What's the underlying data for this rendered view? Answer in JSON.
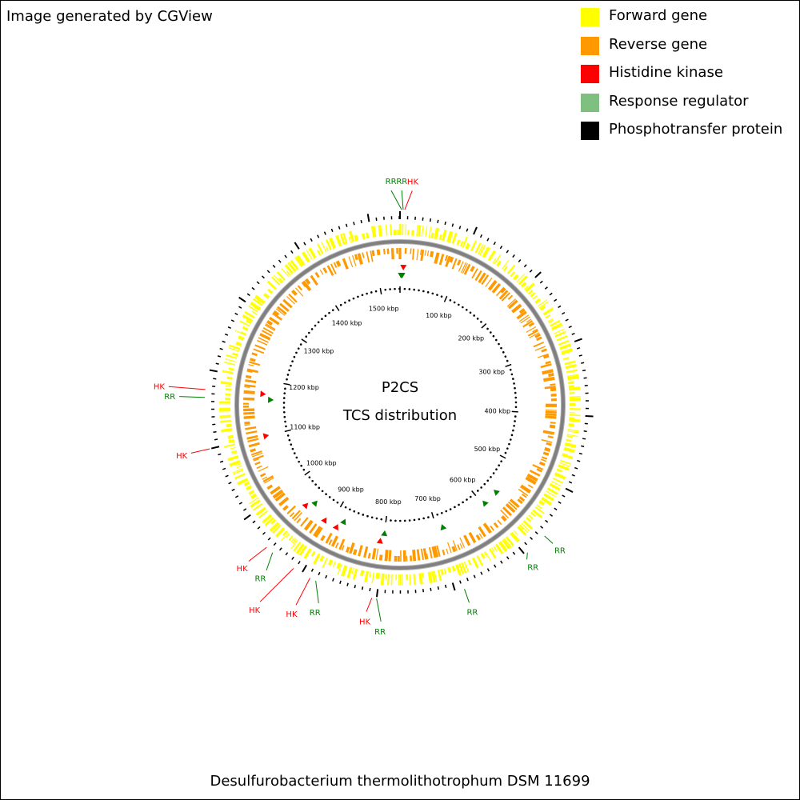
{
  "credit": "Image generated by CGView",
  "organism": "Desulfurobacterium thermolithotrophum DSM 11699",
  "center": {
    "line1": "P2CS",
    "line2": "TCS distribution"
  },
  "legend": [
    {
      "label": "Forward gene",
      "color": "#ffff00"
    },
    {
      "label": "Reverse gene",
      "color": "#ff9900"
    },
    {
      "label": "Histidine kinase",
      "color": "#ff0000"
    },
    {
      "label": "Response regulator",
      "color": "#7fbf7f"
    },
    {
      "label": "Phosphotransfer protein",
      "color": "#000000"
    }
  ],
  "map": {
    "genome_length_kbp": 1541,
    "ruler_labels": [
      "100 kbp",
      "200 kbp",
      "300 kbp",
      "400 kbp",
      "500 kbp",
      "600 kbp",
      "700 kbp",
      "800 kbp",
      "900 kbp",
      "1000 kbp",
      "1100 kbp",
      "1200 kbp",
      "1300 kbp",
      "1400 kbp",
      "1500 kbp"
    ],
    "ruler_positions_kbp": [
      100,
      200,
      300,
      400,
      500,
      600,
      700,
      800,
      900,
      1000,
      1100,
      1200,
      1300,
      1400,
      1500
    ],
    "features": [
      {
        "type": "RR",
        "strand": "reverse",
        "position_kbp": 2
      },
      {
        "type": "RR",
        "strand": "reverse",
        "position_kbp": 4
      },
      {
        "type": "HK",
        "strand": "reverse",
        "position_kbp": 6
      },
      {
        "type": "RR",
        "strand": "reverse",
        "position_kbp": 566
      },
      {
        "type": "RR",
        "strand": "reverse",
        "position_kbp": 596
      },
      {
        "type": "RR",
        "strand": "reverse",
        "position_kbp": 688
      },
      {
        "type": "RR",
        "strand": "reverse",
        "position_kbp": 800
      },
      {
        "type": "HK",
        "strand": "reverse",
        "position_kbp": 806
      },
      {
        "type": "RR",
        "strand": "reverse",
        "position_kbp": 880
      },
      {
        "type": "HK",
        "strand": "reverse",
        "position_kbp": 888
      },
      {
        "type": "HK",
        "strand": "reverse",
        "position_kbp": 912
      },
      {
        "type": "RR",
        "strand": "reverse",
        "position_kbp": 945
      },
      {
        "type": "HK",
        "strand": "reverse",
        "position_kbp": 955
      },
      {
        "type": "HK",
        "strand": "reverse",
        "position_kbp": 1100
      },
      {
        "type": "RR",
        "strand": "reverse",
        "position_kbp": 1165
      },
      {
        "type": "HK",
        "strand": "reverse",
        "position_kbp": 1175
      }
    ],
    "colors": {
      "HK": "#ff0000",
      "RR": "#008000",
      "forward_gene": "#ffff00",
      "reverse_gene": "#ff9900",
      "backbone": "#808080",
      "ticks": "#000000"
    }
  }
}
